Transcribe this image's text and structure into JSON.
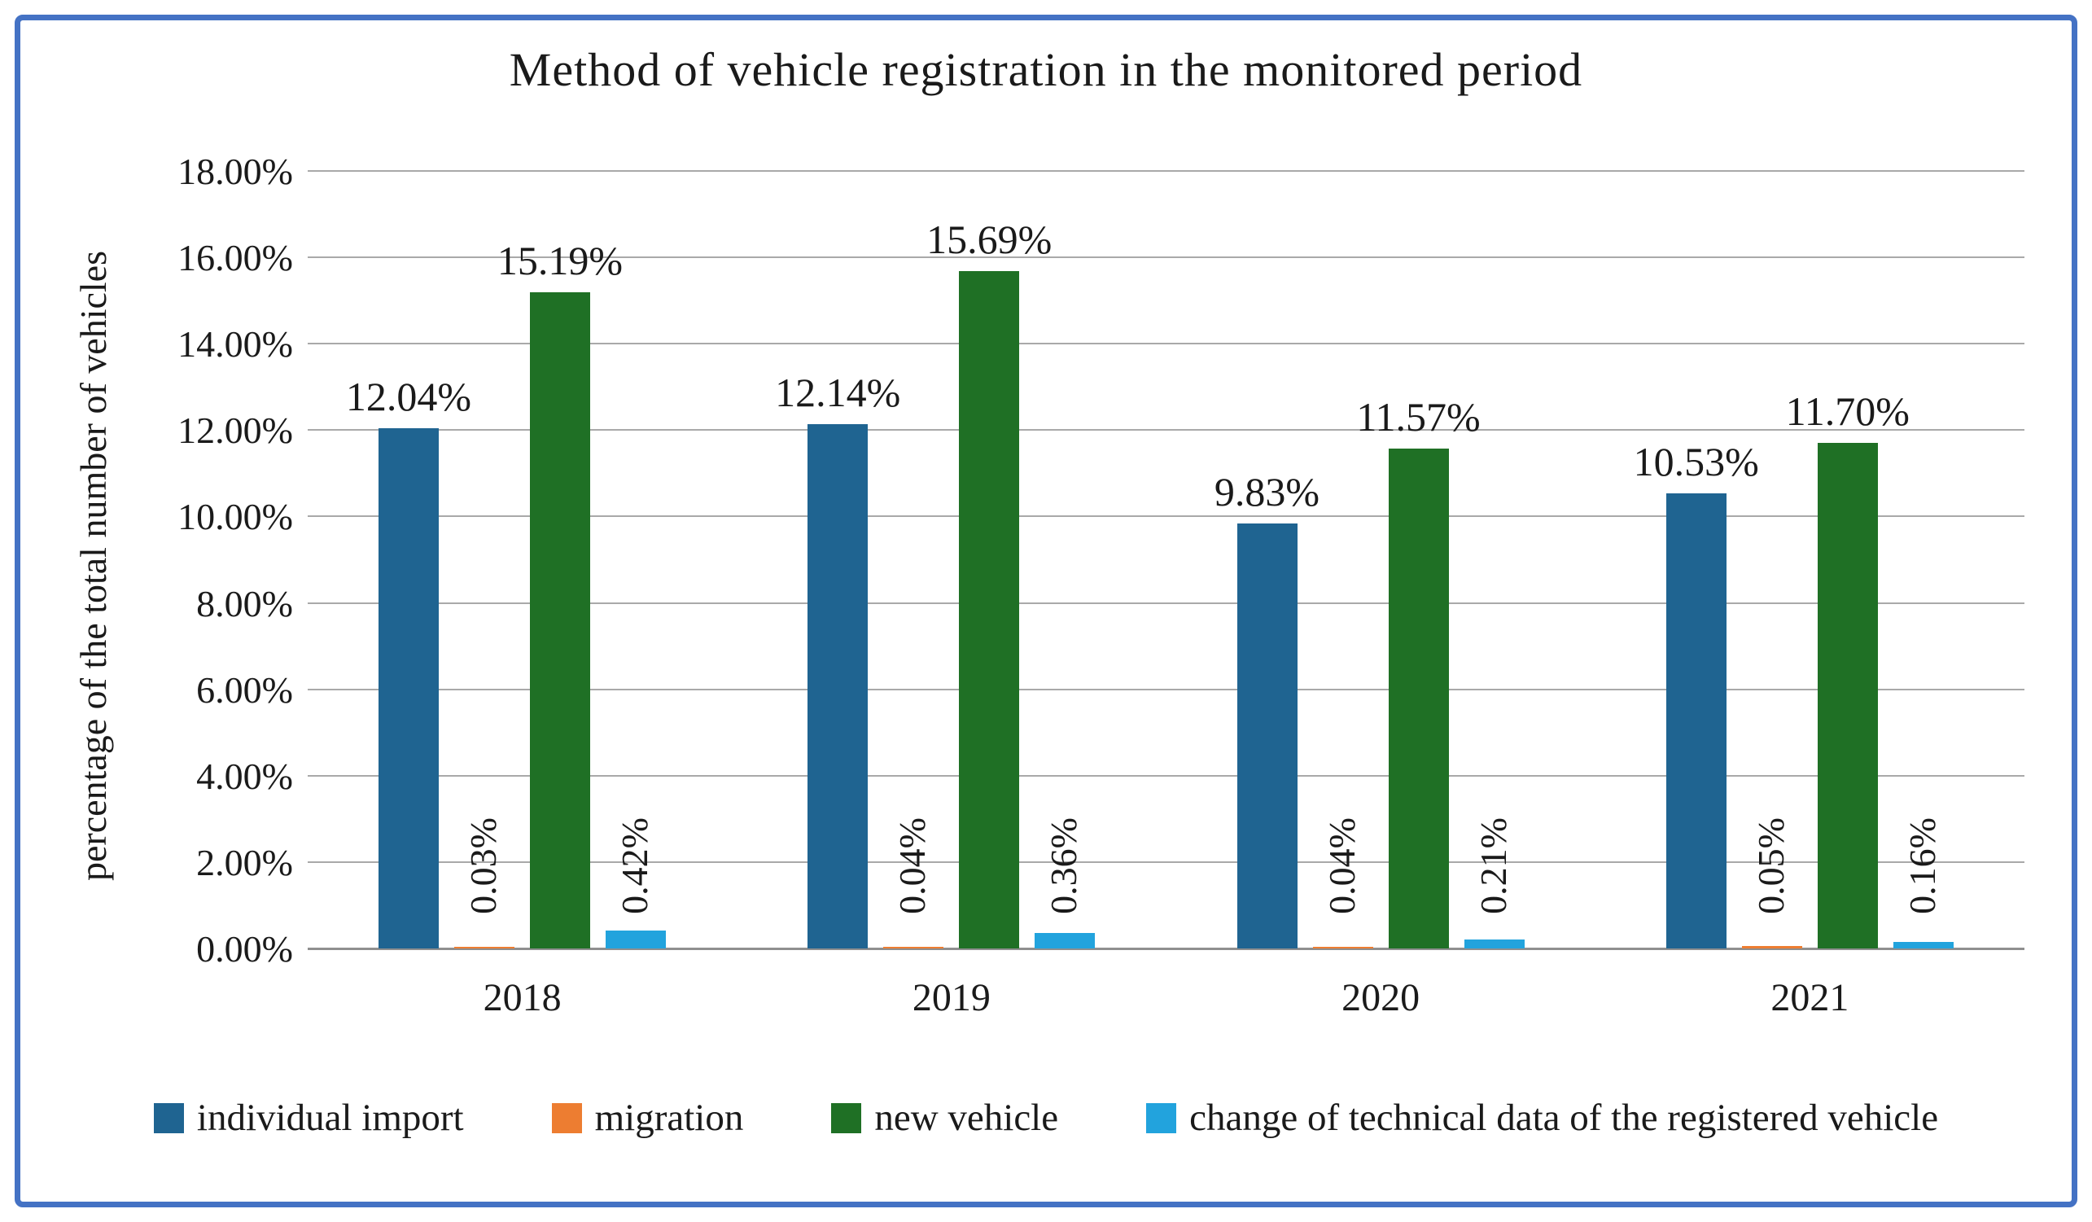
{
  "figure": {
    "border_color": "#4472C4",
    "background": "#ffffff",
    "gridline_color": "#a9a9a9"
  },
  "chart_data": {
    "type": "bar",
    "title": "Method of vehicle registration in the monitored period",
    "xlabel": "",
    "ylabel": "percentage of the total number of vehicles",
    "categories": [
      "2018",
      "2019",
      "2020",
      "2021"
    ],
    "yticks": [
      "0.00%",
      "2.00%",
      "4.00%",
      "6.00%",
      "8.00%",
      "10.00%",
      "12.00%",
      "14.00%",
      "16.00%",
      "18.00%"
    ],
    "ylim": [
      0,
      18
    ],
    "grid": true,
    "legend_position": "bottom",
    "series": [
      {
        "name": "individual import",
        "color": "#1F6491",
        "values": [
          12.04,
          12.14,
          9.83,
          10.53
        ],
        "labels": [
          "12.04%",
          "12.14%",
          "9.83%",
          "10.53%"
        ],
        "label_orientation": "horizontal"
      },
      {
        "name": "migration",
        "color": "#ED7D31",
        "values": [
          0.03,
          0.04,
          0.04,
          0.05
        ],
        "labels": [
          "0.03%",
          "0.04%",
          "0.04%",
          "0.05%"
        ],
        "label_orientation": "vertical"
      },
      {
        "name": "new vehicle",
        "color": "#1F7025",
        "values": [
          15.19,
          15.69,
          11.57,
          11.7
        ],
        "labels": [
          "15.19%",
          "15.69%",
          "11.57%",
          "11.70%"
        ],
        "label_orientation": "horizontal"
      },
      {
        "name": "change of technical data of the registered vehicle",
        "color": "#22A3DD",
        "values": [
          0.42,
          0.36,
          0.21,
          0.16
        ],
        "labels": [
          "0.42%",
          "0.36%",
          "0.21%",
          "0.16%"
        ],
        "label_orientation": "vertical"
      }
    ]
  }
}
